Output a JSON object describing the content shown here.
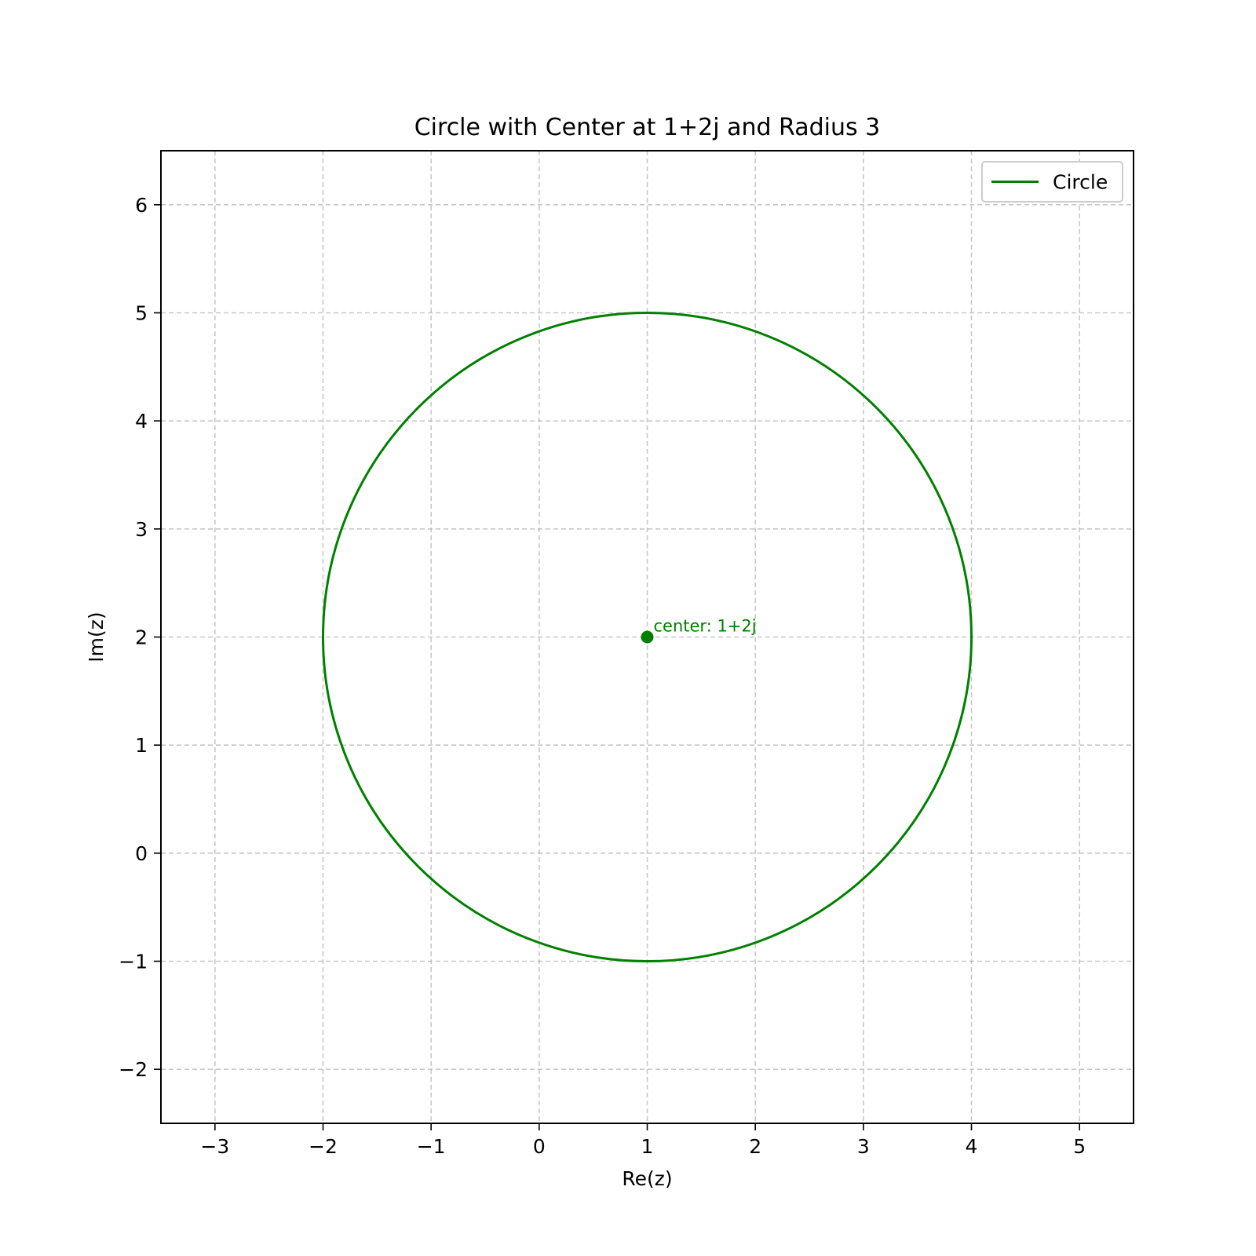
{
  "chart_data": {
    "type": "line",
    "title": "Circle with Center at 1+2j and Radius 3",
    "xlabel": "Re(z)",
    "ylabel": "Im(z)",
    "xlim": [
      -3.5,
      5.5
    ],
    "ylim": [
      -2.5,
      6.5
    ],
    "xticks": [
      -3,
      -2,
      -1,
      0,
      1,
      2,
      3,
      4,
      5
    ],
    "yticks": [
      -2,
      -1,
      0,
      1,
      2,
      3,
      4,
      5,
      6
    ],
    "xtick_labels": [
      "−3",
      "−2",
      "−1",
      "0",
      "1",
      "2",
      "3",
      "4",
      "5"
    ],
    "ytick_labels": [
      "−2",
      "−1",
      "0",
      "1",
      "2",
      "3",
      "4",
      "5",
      "6"
    ],
    "grid": true,
    "legend_position": "upper-right",
    "series": [
      {
        "name": "Circle",
        "shape": "circle",
        "center": [
          1,
          2
        ],
        "radius": 3,
        "color": "#008000"
      }
    ],
    "points": [
      {
        "x": 1,
        "y": 2,
        "color": "#008000"
      }
    ],
    "annotations": [
      {
        "text": "center: 1+2j",
        "x": 1,
        "y": 2,
        "color": "#008000"
      }
    ]
  }
}
